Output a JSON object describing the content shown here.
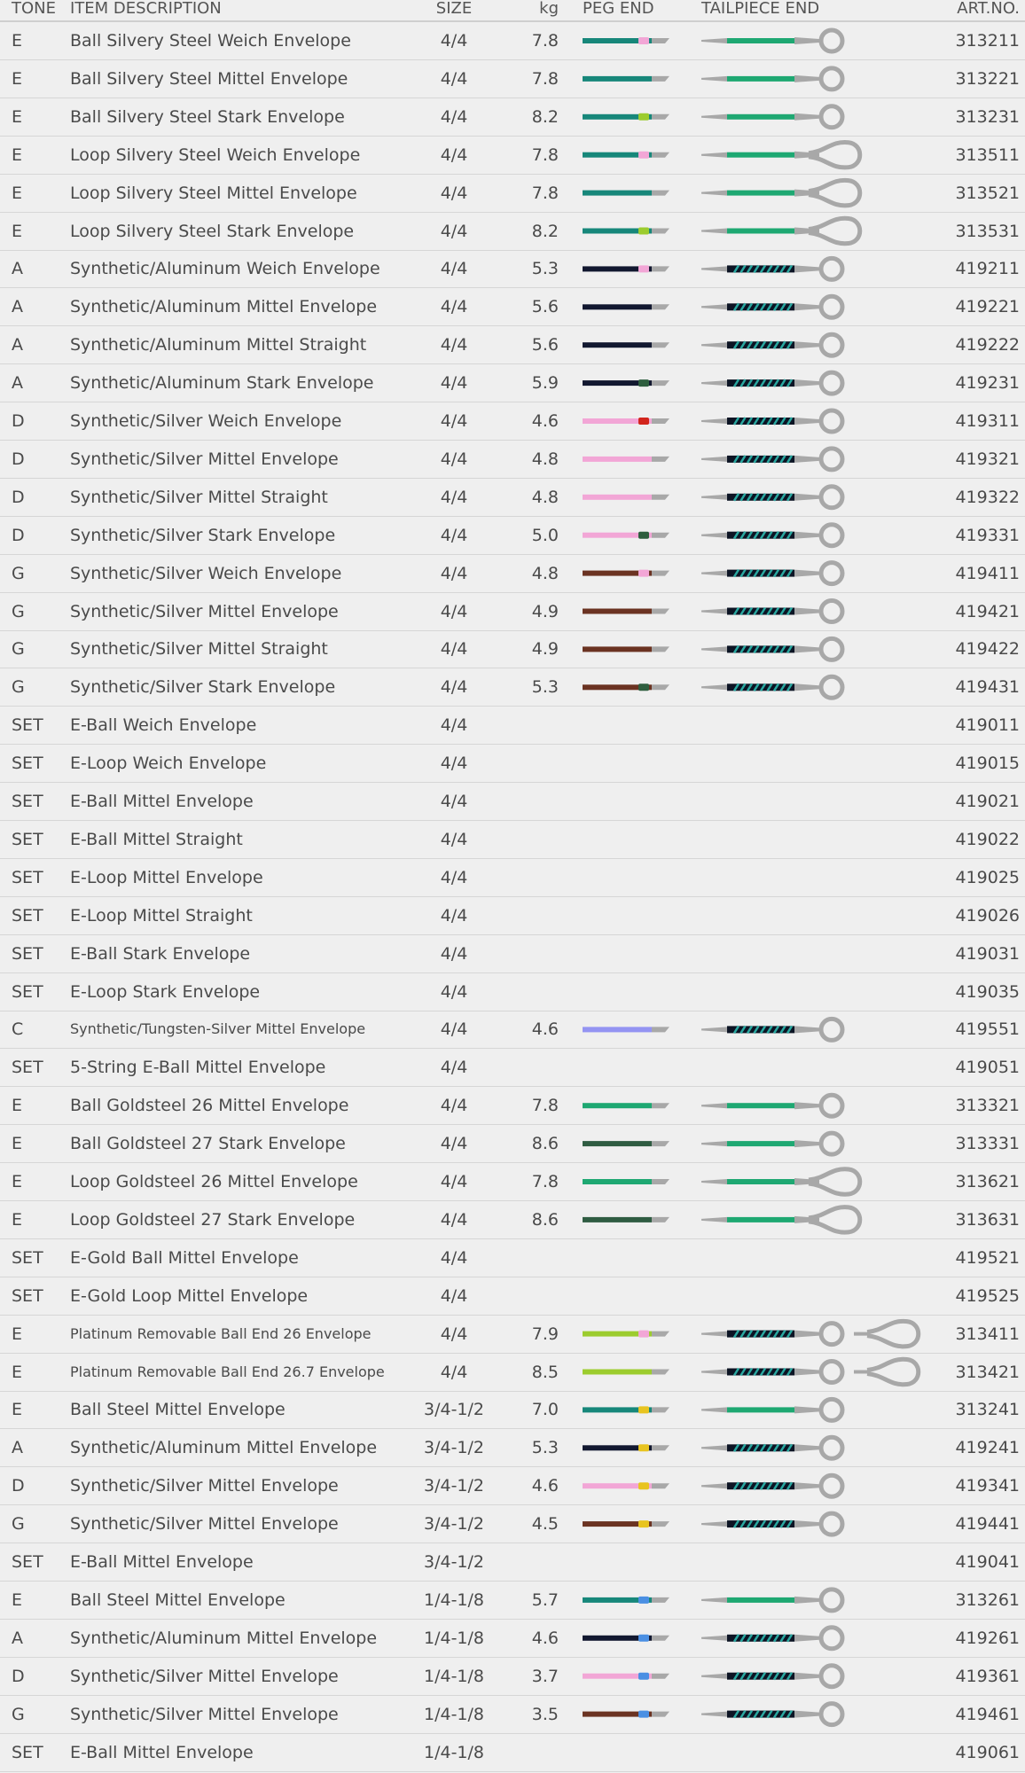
{
  "table": {
    "header": [
      "TONE",
      "ITEM DESCRIPTION",
      "SIZE",
      "kg",
      "PEG END",
      "TAILPIECE END",
      "ART.NO."
    ],
    "rows": [
      {
        "tone": "E",
        "item": "Ball Silvery Steel Weich Envelope",
        "size": "4/4",
        "kg": "7.8",
        "art": "313211"
      },
      {
        "tone": "E",
        "item": "Ball Silvery Steel Mittel Envelope",
        "size": "4/4",
        "kg": "7.8",
        "art": "313221"
      },
      {
        "tone": "E",
        "item": "Ball Silvery Steel Stark Envelope",
        "size": "4/4",
        "kg": "8.2",
        "art": "313231"
      },
      {
        "tone": "E",
        "item": "Loop Silvery Steel Weich Envelope",
        "size": "4/4",
        "kg": "7.8",
        "art": "313511"
      },
      {
        "tone": "E",
        "item": "Loop Silvery Steel Mittel Envelope",
        "size": "4/4",
        "kg": "7.8",
        "art": "313521"
      },
      {
        "tone": "E",
        "item": "Loop Silvery Steel Stark Envelope",
        "size": "4/4",
        "kg": "8.2",
        "art": "313531"
      },
      {
        "tone": "A",
        "item": "Synthetic/Aluminum Weich Envelope",
        "size": "4/4",
        "kg": "5.3",
        "art": "419211"
      },
      {
        "tone": "A",
        "item": "Synthetic/Aluminum Mittel Envelope",
        "size": "4/4",
        "kg": "5.6",
        "art": "419221"
      },
      {
        "tone": "A",
        "item": "Synthetic/Aluminum Mittel Straight",
        "size": "4/4",
        "kg": "5.6",
        "art": "419222"
      },
      {
        "tone": "A",
        "item": "Synthetic/Aluminum Stark Envelope",
        "size": "4/4",
        "kg": "5.9",
        "art": "419231"
      },
      {
        "tone": "D",
        "item": "Synthetic/Silver Weich Envelope",
        "size": "4/4",
        "kg": "4.6",
        "art": "419311"
      },
      {
        "tone": "D",
        "item": "Synthetic/Silver Mittel Envelope",
        "size": "4/4",
        "kg": "4.8",
        "art": "419321"
      },
      {
        "tone": "D",
        "item": "Synthetic/Silver Mittel Straight",
        "size": "4/4",
        "kg": "4.8",
        "art": "419322"
      },
      {
        "tone": "D",
        "item": "Synthetic/Silver Stark Envelope",
        "size": "4/4",
        "kg": "5.0",
        "art": "419331"
      },
      {
        "tone": "G",
        "item": "Synthetic/Silver Weich Envelope",
        "size": "4/4",
        "kg": "4.8",
        "art": "419411"
      },
      {
        "tone": "G",
        "item": "Synthetic/Silver Mittel Envelope",
        "size": "4/4",
        "kg": "4.9",
        "art": "419421"
      },
      {
        "tone": "G",
        "item": "Synthetic/Silver Mittel Straight",
        "size": "4/4",
        "kg": "4.9",
        "art": "419422"
      },
      {
        "tone": "G",
        "item": "Synthetic/Silver Stark Envelope",
        "size": "4/4",
        "kg": "5.3",
        "art": "419431"
      },
      {
        "tone": "SET",
        "item": "E-Ball Weich Envelope",
        "size": "4/4",
        "art": "419011"
      },
      {
        "tone": "SET",
        "item": "E-Loop Weich Envelope",
        "size": "4/4",
        "art": "419015"
      },
      {
        "tone": "SET",
        "item": "E-Ball Mittel Envelope",
        "size": "4/4",
        "art": "419021"
      },
      {
        "tone": "SET",
        "item": "E-Ball Mittel Straight",
        "size": "4/4",
        "art": "419022"
      },
      {
        "tone": "SET",
        "item": "E-Loop Mittel Envelope",
        "size": "4/4",
        "art": "419025"
      },
      {
        "tone": "SET",
        "item": "E-Loop Mittel Straight",
        "size": "4/4",
        "art": "419026"
      },
      {
        "tone": "SET",
        "item": "E-Ball Stark Envelope",
        "size": "4/4",
        "art": "419031"
      },
      {
        "tone": "SET",
        "item": "E-Loop Stark Envelope",
        "size": "4/4",
        "art": "419035"
      },
      {
        "tone": "C",
        "item": "Synthetic/Tungsten-Silver Mittel Envelope",
        "size": "4/4",
        "kg": "4.6",
        "art": "419551"
      },
      {
        "tone": "SET",
        "item": "5-String E-Ball Mittel Envelope",
        "size": "4/4",
        "art": "419051"
      },
      {
        "tone": "E",
        "item": "Ball Goldsteel 26 Mittel Envelope",
        "size": "4/4",
        "kg": "7.8",
        "art": "313321"
      },
      {
        "tone": "E",
        "item": "Ball Goldsteel 27 Stark Envelope",
        "size": "4/4",
        "kg": "8.6",
        "art": "313331"
      },
      {
        "tone": "E",
        "item": "Loop Goldsteel 26 Mittel Envelope",
        "size": "4/4",
        "kg": "7.8",
        "art": "313621"
      },
      {
        "tone": "E",
        "item": "Loop Goldsteel 27 Stark Envelope",
        "size": "4/4",
        "kg": "8.6",
        "art": "313631"
      },
      {
        "tone": "SET",
        "item": "E-Gold Ball Mittel Envelope",
        "size": "4/4",
        "art": "419521"
      },
      {
        "tone": "SET",
        "item": "E-Gold Loop Mittel Envelope",
        "size": "4/4",
        "art": "419525"
      },
      {
        "tone": "E",
        "item": "Platinum Removable Ball End 26 Envelope",
        "size": "4/4",
        "kg": "7.9",
        "art": "313411"
      },
      {
        "tone": "E",
        "item": "Platinum Removable Ball End 26.7 Envelope",
        "size": "4/4",
        "kg": "8.5",
        "art": "313421"
      },
      {
        "tone": "E",
        "item": "Ball Steel Mittel Envelope",
        "size": "3/4-1/2",
        "kg": "7.0",
        "art": "313241"
      },
      {
        "tone": "A",
        "item": "Synthetic/Aluminum Mittel Envelope",
        "size": "3/4-1/2",
        "kg": "5.3",
        "art": "419241"
      },
      {
        "tone": "D",
        "item": "Synthetic/Silver Mittel Envelope",
        "size": "3/4-1/2",
        "kg": "4.6",
        "art": "419341"
      },
      {
        "tone": "G",
        "item": "Synthetic/Silver Mittel Envelope",
        "size": "3/4-1/2",
        "kg": "4.5",
        "art": "419441"
      },
      {
        "tone": "SET",
        "item": "E-Ball Mittel Envelope",
        "size": "3/4-1/2",
        "art": "419041"
      },
      {
        "tone": "E",
        "item": "Ball Steel Mittel Envelope",
        "size": "1/4-1/8",
        "kg": "5.7",
        "art": "313261"
      },
      {
        "tone": "A",
        "item": "Synthetic/Aluminum Mittel Envelope",
        "size": "1/4-1/8",
        "kg": "4.6",
        "art": "419261"
      },
      {
        "tone": "D",
        "item": "Synthetic/Silver Mittel Envelope",
        "size": "1/4-1/8",
        "kg": "3.7",
        "art": "419361"
      },
      {
        "tone": "G",
        "item": "Synthetic/Silver Mittel Envelope",
        "size": "1/4-1/8",
        "kg": "3.5",
        "art": "419461"
      },
      {
        "tone": "SET",
        "item": "E-Ball Mittel Envelope",
        "size": "1/4-1/8",
        "art": "419061"
      }
    ]
  }
}
